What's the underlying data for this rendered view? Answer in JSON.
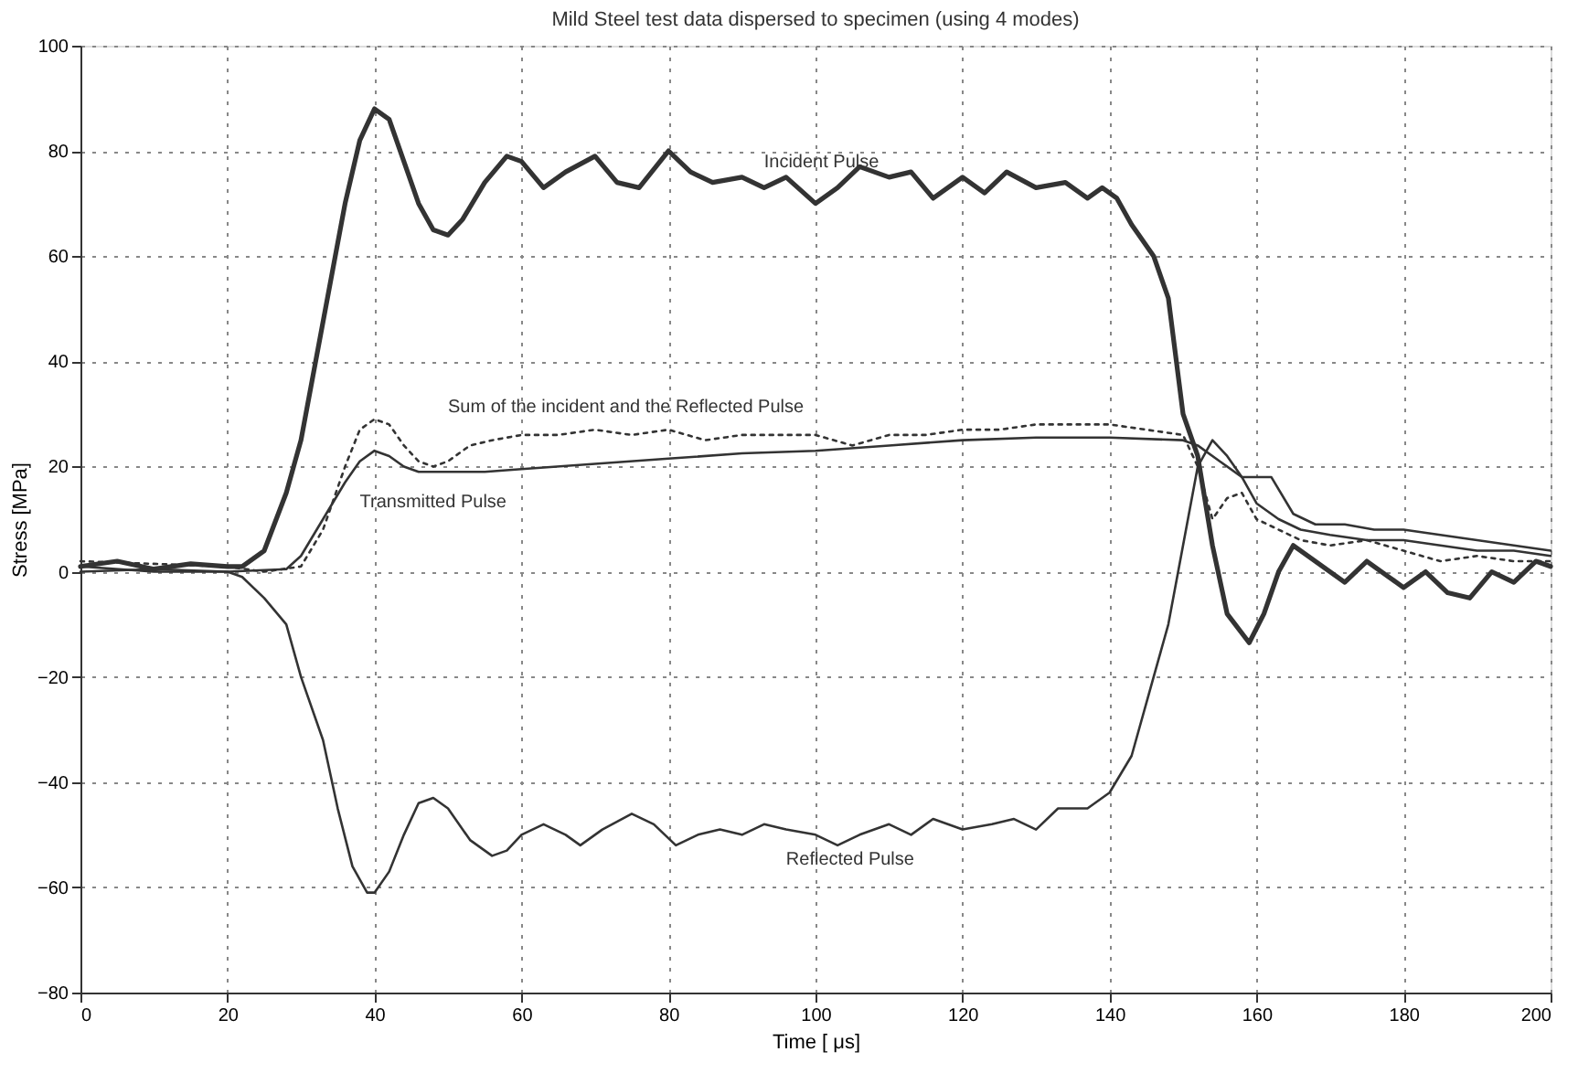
{
  "chart_data": {
    "type": "line",
    "title": "Mild Steel test data dispersed to specimen (using 4 modes)",
    "xlabel": "Time [ μs]",
    "ylabel": "Stress [MPa]",
    "xlim": [
      0,
      200
    ],
    "xticks": [
      0,
      20,
      40,
      60,
      80,
      100,
      120,
      140,
      160,
      180,
      200
    ],
    "ylim": [
      -80,
      100
    ],
    "yticks": [
      -80,
      -60,
      -40,
      -20,
      0,
      20,
      40,
      60,
      80,
      100
    ],
    "grid": true,
    "marker": "none",
    "series": [
      {
        "name": "Incident Pulse",
        "color": "#333333",
        "line_style": "solid",
        "x": [
          0,
          5,
          10,
          15,
          20,
          22,
          25,
          28,
          30,
          32,
          34,
          36,
          38,
          40,
          42,
          44,
          46,
          48,
          50,
          52,
          55,
          58,
          60,
          63,
          66,
          70,
          73,
          76,
          80,
          83,
          86,
          90,
          93,
          96,
          100,
          103,
          106,
          110,
          113,
          116,
          120,
          123,
          126,
          130,
          134,
          137,
          139,
          141,
          143,
          146,
          148,
          150,
          152,
          154,
          156,
          159,
          161,
          163,
          165,
          168,
          170,
          172,
          175,
          178,
          180,
          183,
          186,
          189,
          192,
          195,
          198,
          200
        ],
        "values": [
          1,
          2,
          0.5,
          1.5,
          1,
          1,
          4,
          15,
          25,
          40,
          55,
          70,
          82,
          88,
          86,
          78,
          70,
          65,
          64,
          67,
          74,
          79,
          78,
          73,
          76,
          79,
          74,
          73,
          80,
          76,
          74,
          75,
          73,
          75,
          70,
          73,
          77,
          75,
          76,
          71,
          75,
          72,
          76,
          73,
          74,
          71,
          73,
          71,
          66,
          60,
          52,
          30,
          22,
          5,
          -8,
          -13.5,
          -8,
          0,
          5,
          2,
          0,
          -2,
          2,
          -1,
          -3,
          0,
          -4,
          -5,
          0,
          -2,
          2,
          1
        ]
      },
      {
        "name": "Reflected Pulse",
        "color": "#333333",
        "line_style": "solid",
        "x": [
          0,
          10,
          20,
          22,
          25,
          28,
          30,
          33,
          35,
          37,
          39,
          40,
          42,
          44,
          46,
          48,
          50,
          53,
          56,
          58,
          60,
          63,
          66,
          68,
          71,
          75,
          78,
          81,
          84,
          87,
          90,
          93,
          96,
          100,
          103,
          106,
          110,
          113,
          116,
          120,
          124,
          127,
          130,
          133,
          137,
          140,
          143,
          146,
          148,
          150,
          152,
          154,
          156,
          158,
          160,
          163,
          166,
          170,
          175,
          180,
          185,
          190,
          195,
          200
        ],
        "values": [
          1,
          0,
          0,
          -1,
          -5,
          -10,
          -20,
          -32,
          -45,
          -56,
          -61,
          -61,
          -57,
          -50,
          -44,
          -43,
          -45,
          -51,
          -54,
          -53,
          -50,
          -48,
          -50,
          -52,
          -49,
          -46,
          -48,
          -52,
          -50,
          -49,
          -50,
          -48,
          -49,
          -50,
          -52,
          -50,
          -48,
          -50,
          -47,
          -49,
          -48,
          -47,
          -49,
          -45,
          -45,
          -42,
          -35,
          -20,
          -10,
          5,
          20,
          25,
          22,
          18,
          13,
          10,
          8,
          7,
          6,
          6,
          5,
          4,
          4,
          3
        ]
      },
      {
        "name": "Transmitted Pulse",
        "color": "#333333",
        "line_style": "solid",
        "x": [
          0,
          10,
          20,
          28,
          30,
          33,
          36,
          38,
          40,
          42,
          44,
          46,
          50,
          55,
          60,
          70,
          80,
          90,
          100,
          110,
          120,
          130,
          140,
          150,
          152,
          155,
          158,
          162,
          165,
          168,
          172,
          176,
          180,
          185,
          190,
          195,
          200
        ],
        "values": [
          0,
          0.5,
          0,
          0.5,
          3,
          10,
          17,
          21,
          23,
          22,
          20,
          19,
          19,
          19,
          19.5,
          20.5,
          21.5,
          22.5,
          23,
          24,
          25,
          25.5,
          25.5,
          25,
          24,
          21,
          18,
          18,
          11,
          9,
          9,
          8,
          8,
          7,
          6,
          5,
          4
        ]
      },
      {
        "name": "Sum of the incident and the Reflected Pulse",
        "color": "#333333",
        "line_style": "dotted",
        "x": [
          0,
          20,
          25,
          30,
          33,
          36,
          38,
          40,
          42,
          44,
          46,
          48,
          50,
          53,
          56,
          60,
          65,
          70,
          75,
          80,
          85,
          90,
          95,
          100,
          105,
          110,
          115,
          120,
          125,
          130,
          135,
          140,
          145,
          150,
          152,
          154,
          156,
          158,
          160,
          163,
          166,
          170,
          175,
          180,
          185,
          190,
          195,
          200
        ],
        "values": [
          2,
          1,
          0,
          1,
          8,
          20,
          27,
          29,
          28,
          24,
          21,
          20,
          21,
          24,
          25,
          26,
          26,
          27,
          26,
          27,
          25,
          26,
          26,
          26,
          24,
          26,
          26,
          27,
          27,
          28,
          28,
          28,
          27,
          26,
          20,
          10,
          14,
          15,
          10,
          8,
          6,
          5,
          6,
          4,
          2,
          3,
          2,
          2
        ]
      }
    ],
    "legend": false
  }
}
